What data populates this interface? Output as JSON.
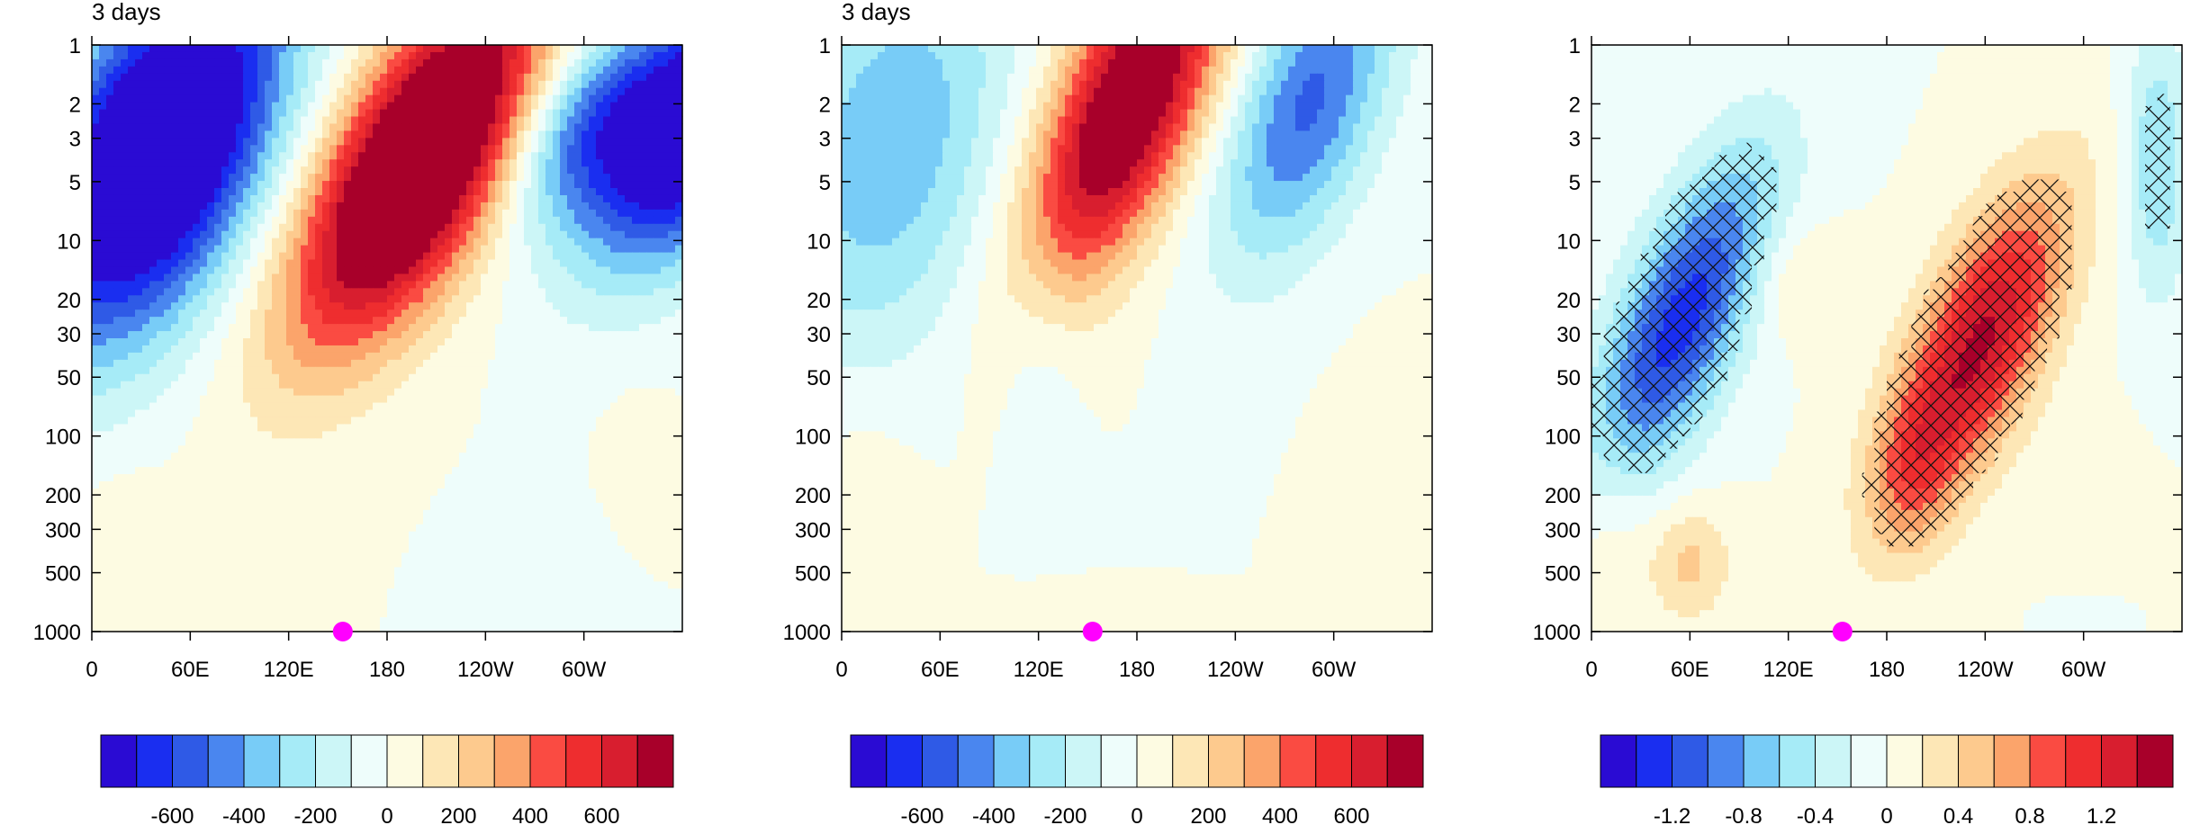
{
  "chart_data": [
    {
      "type": "heatmap",
      "title": "3 days",
      "xlabel": "",
      "ylabel": "",
      "x_ticks": [
        "0",
        "60E",
        "120E",
        "180",
        "120W",
        "60W"
      ],
      "y_ticks": [
        "1",
        "2",
        "3",
        "5",
        "10",
        "20",
        "30",
        "50",
        "100",
        "200",
        "300",
        "500",
        "1000"
      ],
      "y_scale": "log",
      "y_direction": "down",
      "x_range": [
        0,
        360
      ],
      "y_range": [
        1,
        1000
      ],
      "contour_levels": [
        -700,
        -600,
        -500,
        -400,
        -300,
        -200,
        -100,
        0,
        100,
        200,
        300,
        400,
        500,
        600,
        700
      ],
      "colorbar_labels": [
        "-600",
        "-400",
        "-200",
        "0",
        "200",
        "400",
        "600"
      ],
      "marker": {
        "longitude": 153,
        "pressure": 1000,
        "color": "#ff00ff"
      },
      "hatching": false
    },
    {
      "type": "heatmap",
      "title": "3 days",
      "xlabel": "",
      "ylabel": "",
      "x_ticks": [
        "0",
        "60E",
        "120E",
        "180",
        "120W",
        "60W"
      ],
      "y_ticks": [
        "1",
        "2",
        "3",
        "5",
        "10",
        "20",
        "30",
        "50",
        "100",
        "200",
        "300",
        "500",
        "1000"
      ],
      "y_scale": "log",
      "y_direction": "down",
      "x_range": [
        0,
        360
      ],
      "y_range": [
        1,
        1000
      ],
      "contour_levels": [
        -700,
        -600,
        -500,
        -400,
        -300,
        -200,
        -100,
        0,
        100,
        200,
        300,
        400,
        500,
        600,
        700
      ],
      "colorbar_labels": [
        "-600",
        "-400",
        "-200",
        "0",
        "200",
        "400",
        "600"
      ],
      "marker": {
        "longitude": 153,
        "pressure": 1000,
        "color": "#ff00ff"
      },
      "hatching": false
    },
    {
      "type": "heatmap",
      "title": "",
      "xlabel": "",
      "ylabel": "",
      "x_ticks": [
        "0",
        "60E",
        "120E",
        "180",
        "120W",
        "60W"
      ],
      "y_ticks": [
        "1",
        "2",
        "3",
        "5",
        "10",
        "20",
        "30",
        "50",
        "100",
        "200",
        "300",
        "500",
        "1000"
      ],
      "y_scale": "log",
      "y_direction": "down",
      "x_range": [
        0,
        360
      ],
      "y_range": [
        1,
        1000
      ],
      "contour_levels": [
        -1.4,
        -1.2,
        -1.0,
        -0.8,
        -0.6,
        -0.4,
        -0.2,
        0,
        0.2,
        0.4,
        0.6,
        0.8,
        1.0,
        1.2,
        1.4
      ],
      "colorbar_labels": [
        "-1.2",
        "-0.8",
        "-0.4",
        "0",
        "0.4",
        "0.8",
        "1.2"
      ],
      "marker": {
        "longitude": 153,
        "pressure": 1000,
        "color": "#ff00ff"
      },
      "hatching": true
    }
  ],
  "colors": {
    "palette": [
      "#2a0bd3",
      "#1a2ef0",
      "#2f5ae6",
      "#4a86ef",
      "#78ccf7",
      "#a6ebf7",
      "#ccf6f7",
      "#eefdfb",
      "#fdfbe2",
      "#fde7b6",
      "#fdca8e",
      "#fba46b",
      "#fa4b42",
      "#ee2d2f",
      "#d81e2f",
      "#a8002a"
    ],
    "marker": "#ff00ff"
  }
}
